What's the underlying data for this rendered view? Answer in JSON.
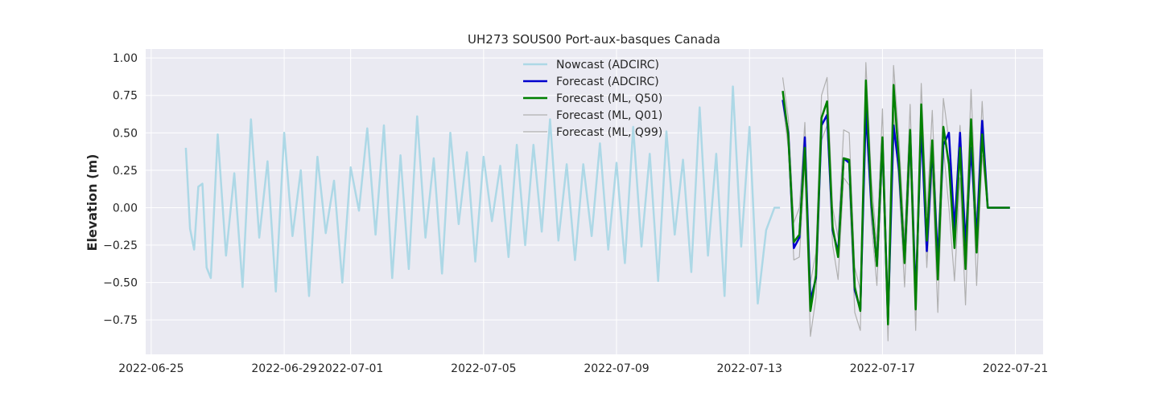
{
  "chart_data": {
    "type": "line",
    "title": "UH273 SOUS00 Port-aux-basques Canada",
    "xlabel": "",
    "ylabel": "Elevation (m)",
    "xlim": [
      "2022-06-24T20:00",
      "2022-07-21T20:00"
    ],
    "ylim": [
      -0.98,
      1.06
    ],
    "x_ticks": [
      "2022-06-25",
      "2022-06-29",
      "2022-07-01",
      "2022-07-05",
      "2022-07-09",
      "2022-07-13",
      "2022-07-17",
      "2022-07-21"
    ],
    "y_ticks": [
      1.0,
      0.75,
      0.5,
      0.25,
      0.0,
      -0.25,
      -0.5,
      -0.75
    ],
    "y_tick_labels": [
      "1.00",
      "0.75",
      "0.50",
      "0.25",
      "0.00",
      "−0.25",
      "−0.50",
      "−0.75"
    ],
    "grid": true,
    "legend_position": "top-center",
    "series": [
      {
        "name": "Nowcast (ADCIRC)",
        "color": "#add8e6",
        "x": [
          "2022-06-26T01:00",
          "2022-06-26T04:00",
          "2022-06-26T07:00",
          "2022-06-26T10:00",
          "2022-06-26T13:00",
          "2022-06-26T16:00",
          "2022-06-26T19:00",
          "2022-06-27T00:00",
          "2022-06-27T06:00",
          "2022-06-27T12:00",
          "2022-06-27T18:00",
          "2022-06-28T00:00",
          "2022-06-28T06:00",
          "2022-06-28T12:00",
          "2022-06-28T18:00",
          "2022-06-29T00:00",
          "2022-06-29T06:00",
          "2022-06-29T12:00",
          "2022-06-29T18:00",
          "2022-06-30T00:00",
          "2022-06-30T06:00",
          "2022-06-30T12:00",
          "2022-06-30T18:00",
          "2022-07-01T00:00",
          "2022-07-01T06:00",
          "2022-07-01T12:00",
          "2022-07-01T18:00",
          "2022-07-02T00:00",
          "2022-07-02T06:00",
          "2022-07-02T12:00",
          "2022-07-02T18:00",
          "2022-07-03T00:00",
          "2022-07-03T06:00",
          "2022-07-03T12:00",
          "2022-07-03T18:00",
          "2022-07-04T00:00",
          "2022-07-04T06:00",
          "2022-07-04T12:00",
          "2022-07-04T18:00",
          "2022-07-05T00:00",
          "2022-07-05T06:00",
          "2022-07-05T12:00",
          "2022-07-05T18:00",
          "2022-07-06T00:00",
          "2022-07-06T06:00",
          "2022-07-06T12:00",
          "2022-07-06T18:00",
          "2022-07-07T00:00",
          "2022-07-07T06:00",
          "2022-07-07T12:00",
          "2022-07-07T18:00",
          "2022-07-08T00:00",
          "2022-07-08T06:00",
          "2022-07-08T12:00",
          "2022-07-08T18:00",
          "2022-07-09T00:00",
          "2022-07-09T06:00",
          "2022-07-09T12:00",
          "2022-07-09T18:00",
          "2022-07-10T00:00",
          "2022-07-10T06:00",
          "2022-07-10T12:00",
          "2022-07-10T18:00",
          "2022-07-11T00:00",
          "2022-07-11T06:00",
          "2022-07-11T12:00",
          "2022-07-11T18:00",
          "2022-07-12T00:00",
          "2022-07-12T06:00",
          "2022-07-12T12:00",
          "2022-07-12T18:00",
          "2022-07-13T00:00",
          "2022-07-13T06:00",
          "2022-07-13T12:00",
          "2022-07-13T18:00",
          "2022-07-13T22:00"
        ],
        "values": [
          0.4,
          -0.14,
          -0.28,
          0.14,
          0.16,
          -0.4,
          -0.47,
          0.49,
          -0.32,
          0.23,
          -0.53,
          0.59,
          -0.2,
          0.31,
          -0.56,
          0.5,
          -0.19,
          0.25,
          -0.59,
          0.34,
          -0.17,
          0.18,
          -0.5,
          0.27,
          -0.02,
          0.53,
          -0.18,
          0.55,
          -0.47,
          0.35,
          -0.41,
          0.61,
          -0.2,
          0.33,
          -0.44,
          0.5,
          -0.11,
          0.37,
          -0.36,
          0.34,
          -0.09,
          0.28,
          -0.33,
          0.42,
          -0.25,
          0.42,
          -0.16,
          0.59,
          -0.22,
          0.29,
          -0.35,
          0.29,
          -0.19,
          0.43,
          -0.28,
          0.3,
          -0.37,
          0.54,
          -0.26,
          0.36,
          -0.49,
          0.51,
          -0.18,
          0.32,
          -0.43,
          0.67,
          -0.32,
          0.36,
          -0.59,
          0.81,
          -0.26,
          0.54,
          -0.64,
          -0.15,
          0.0,
          0.0
        ]
      },
      {
        "name": "Forecast (ADCIRC)",
        "color": "#0000cd",
        "x": [
          "2022-07-14T00:00",
          "2022-07-14T04:00",
          "2022-07-14T08:00",
          "2022-07-14T12:00",
          "2022-07-14T16:00",
          "2022-07-14T20:00",
          "2022-07-15T00:00",
          "2022-07-15T04:00",
          "2022-07-15T08:00",
          "2022-07-15T12:00",
          "2022-07-15T16:00",
          "2022-07-15T20:00",
          "2022-07-16T00:00",
          "2022-07-16T04:00",
          "2022-07-16T08:00",
          "2022-07-16T12:00",
          "2022-07-16T16:00",
          "2022-07-16T20:00",
          "2022-07-17T00:00",
          "2022-07-17T04:00",
          "2022-07-17T08:00",
          "2022-07-17T12:00",
          "2022-07-17T16:00",
          "2022-07-17T20:00",
          "2022-07-18T00:00",
          "2022-07-18T04:00",
          "2022-07-18T08:00",
          "2022-07-18T12:00",
          "2022-07-18T16:00",
          "2022-07-18T20:00",
          "2022-07-19T00:00",
          "2022-07-19T04:00",
          "2022-07-19T08:00",
          "2022-07-19T12:00",
          "2022-07-19T16:00",
          "2022-07-19T20:00",
          "2022-07-20T00:00",
          "2022-07-20T04:00",
          "2022-07-20T08:00",
          "2022-07-20T12:00",
          "2022-07-20T16:00",
          "2022-07-20T20:00"
        ],
        "values": [
          0.72,
          0.5,
          -0.27,
          -0.2,
          0.47,
          -0.62,
          -0.47,
          0.55,
          0.62,
          -0.15,
          -0.3,
          0.33,
          0.3,
          -0.55,
          -0.68,
          0.65,
          0.02,
          -0.38,
          0.45,
          -0.75,
          0.55,
          0.25,
          -0.35,
          0.5,
          -0.6,
          0.55,
          -0.29,
          0.4,
          -0.35,
          0.42,
          0.5,
          -0.15,
          0.5,
          -0.25,
          0.4,
          -0.2,
          0.58,
          0.0,
          0.0,
          0.0,
          0.0,
          0.0
        ]
      },
      {
        "name": "Forecast (ML, Q50)",
        "color": "#008000",
        "x": [
          "2022-07-14T00:00",
          "2022-07-14T04:00",
          "2022-07-14T08:00",
          "2022-07-14T12:00",
          "2022-07-14T16:00",
          "2022-07-14T20:00",
          "2022-07-15T00:00",
          "2022-07-15T04:00",
          "2022-07-15T08:00",
          "2022-07-15T12:00",
          "2022-07-15T16:00",
          "2022-07-15T20:00",
          "2022-07-16T00:00",
          "2022-07-16T04:00",
          "2022-07-16T08:00",
          "2022-07-16T12:00",
          "2022-07-16T16:00",
          "2022-07-16T20:00",
          "2022-07-17T00:00",
          "2022-07-17T04:00",
          "2022-07-17T08:00",
          "2022-07-17T12:00",
          "2022-07-17T16:00",
          "2022-07-17T20:00",
          "2022-07-18T00:00",
          "2022-07-18T04:00",
          "2022-07-18T08:00",
          "2022-07-18T12:00",
          "2022-07-18T16:00",
          "2022-07-18T20:00",
          "2022-07-19T00:00",
          "2022-07-19T04:00",
          "2022-07-19T08:00",
          "2022-07-19T12:00",
          "2022-07-19T16:00",
          "2022-07-19T20:00",
          "2022-07-20T00:00",
          "2022-07-20T04:00",
          "2022-07-20T08:00",
          "2022-07-20T12:00",
          "2022-07-20T16:00",
          "2022-07-20T20:00"
        ],
        "values": [
          0.78,
          0.48,
          -0.23,
          -0.18,
          0.4,
          -0.69,
          -0.45,
          0.6,
          0.71,
          -0.13,
          -0.33,
          0.33,
          0.32,
          -0.53,
          -0.69,
          0.85,
          0.05,
          -0.39,
          0.47,
          -0.78,
          0.82,
          0.3,
          -0.37,
          0.52,
          -0.68,
          0.69,
          -0.22,
          0.45,
          -0.48,
          0.54,
          0.29,
          -0.27,
          0.4,
          -0.41,
          0.59,
          -0.3,
          0.49,
          0.0,
          0.0,
          0.0,
          0.0,
          0.0
        ]
      },
      {
        "name": "Forecast (ML, Q01)",
        "color": "#b0b0b0",
        "x": [
          "2022-07-14T00:00",
          "2022-07-14T04:00",
          "2022-07-14T08:00",
          "2022-07-14T12:00",
          "2022-07-14T16:00",
          "2022-07-14T20:00",
          "2022-07-15T00:00",
          "2022-07-15T04:00",
          "2022-07-15T08:00",
          "2022-07-15T12:00",
          "2022-07-15T16:00",
          "2022-07-15T20:00",
          "2022-07-16T00:00",
          "2022-07-16T04:00",
          "2022-07-16T08:00",
          "2022-07-16T12:00",
          "2022-07-16T16:00",
          "2022-07-16T20:00",
          "2022-07-17T00:00",
          "2022-07-17T04:00",
          "2022-07-17T08:00",
          "2022-07-17T12:00",
          "2022-07-17T16:00",
          "2022-07-17T20:00",
          "2022-07-18T00:00",
          "2022-07-18T04:00",
          "2022-07-18T08:00",
          "2022-07-18T12:00",
          "2022-07-18T16:00",
          "2022-07-18T20:00",
          "2022-07-19T00:00",
          "2022-07-19T04:00",
          "2022-07-19T08:00",
          "2022-07-19T12:00",
          "2022-07-19T16:00",
          "2022-07-19T20:00",
          "2022-07-20T00:00",
          "2022-07-20T04:00",
          "2022-07-20T08:00",
          "2022-07-20T12:00",
          "2022-07-20T16:00",
          "2022-07-20T20:00"
        ],
        "values": [
          0.7,
          0.4,
          -0.35,
          -0.33,
          0.3,
          -0.86,
          -0.6,
          0.45,
          0.55,
          -0.25,
          -0.48,
          0.2,
          0.15,
          -0.7,
          -0.82,
          0.65,
          -0.1,
          -0.52,
          0.3,
          -0.89,
          0.65,
          0.15,
          -0.53,
          0.35,
          -0.82,
          0.55,
          -0.4,
          0.25,
          -0.7,
          0.4,
          0.0,
          -0.49,
          0.2,
          -0.65,
          0.45,
          -0.52,
          0.35,
          0.0,
          0.0,
          0.0,
          0.0,
          0.0
        ]
      },
      {
        "name": "Forecast (ML, Q99)",
        "color": "#b0b0b0",
        "x": [
          "2022-07-14T00:00",
          "2022-07-14T04:00",
          "2022-07-14T08:00",
          "2022-07-14T12:00",
          "2022-07-14T16:00",
          "2022-07-14T20:00",
          "2022-07-15T00:00",
          "2022-07-15T04:00",
          "2022-07-15T08:00",
          "2022-07-15T12:00",
          "2022-07-15T16:00",
          "2022-07-15T20:00",
          "2022-07-16T00:00",
          "2022-07-16T04:00",
          "2022-07-16T08:00",
          "2022-07-16T12:00",
          "2022-07-16T16:00",
          "2022-07-16T20:00",
          "2022-07-17T00:00",
          "2022-07-17T04:00",
          "2022-07-17T08:00",
          "2022-07-17T12:00",
          "2022-07-17T16:00",
          "2022-07-17T20:00",
          "2022-07-18T00:00",
          "2022-07-18T04:00",
          "2022-07-18T08:00",
          "2022-07-18T12:00",
          "2022-07-18T16:00",
          "2022-07-18T20:00",
          "2022-07-19T00:00",
          "2022-07-19T04:00",
          "2022-07-19T08:00",
          "2022-07-19T12:00",
          "2022-07-19T16:00",
          "2022-07-19T20:00",
          "2022-07-20T00:00",
          "2022-07-20T04:00",
          "2022-07-20T08:00",
          "2022-07-20T12:00",
          "2022-07-20T16:00",
          "2022-07-20T20:00"
        ],
        "values": [
          0.87,
          0.6,
          -0.1,
          0.0,
          0.57,
          -0.5,
          -0.3,
          0.75,
          0.87,
          0.0,
          -0.2,
          0.52,
          0.5,
          -0.4,
          -0.55,
          0.97,
          0.2,
          -0.25,
          0.66,
          -0.65,
          0.95,
          0.45,
          -0.22,
          0.69,
          -0.52,
          0.83,
          -0.05,
          0.65,
          -0.3,
          0.73,
          0.45,
          -0.1,
          0.55,
          -0.2,
          0.79,
          -0.1,
          0.71,
          0.0,
          0.0,
          0.0,
          0.0,
          0.0
        ]
      }
    ]
  }
}
